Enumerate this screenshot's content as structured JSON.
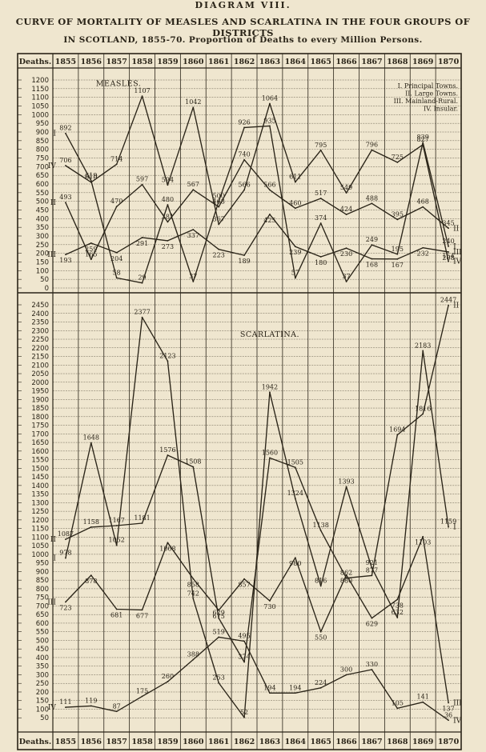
{
  "header": {
    "plate": "DIAGRAM VIII.",
    "title_line1": "CURVE OF MORTALITY OF MEASLES AND SCARLATINA IN THE FOUR GROUPS OF DISTRICTS",
    "title_line2": "IN SCOTLAND, 1855-70.  Proportion of Deaths to every Million Persons."
  },
  "colors": {
    "paper": "#efe6cf",
    "ink": "#2a2418",
    "grid": "#6b6352"
  },
  "chart_data": [
    {
      "type": "line",
      "title": "MEASLES.",
      "column_label": "Deaths.",
      "x": [
        1855,
        1856,
        1857,
        1858,
        1859,
        1860,
        1861,
        1862,
        1863,
        1864,
        1865,
        1866,
        1867,
        1868,
        1869,
        1870
      ],
      "ylim": [
        0,
        1200
      ],
      "yticks": [
        0,
        50,
        100,
        150,
        200,
        250,
        300,
        350,
        400,
        450,
        500,
        550,
        600,
        650,
        700,
        750,
        800,
        850,
        900,
        950,
        1000,
        1050,
        1100,
        1150,
        1200
      ],
      "legend": [
        "I. Principal Towns.",
        "II. Large Towns.",
        "III. Mainland-Rural.",
        "IV. Insular."
      ],
      "legend_position": "top-right",
      "series": [
        {
          "name": "I",
          "values": [
            892,
            619,
            58,
            29,
            480,
            37,
            500,
            926,
            935,
            57,
            374,
            37,
            249,
            195,
            839,
            240
          ]
        },
        {
          "name": "II",
          "values": [
            493,
            165,
            470,
            597,
            381,
            567,
            468,
            740,
            566,
            460,
            517,
            424,
            488,
            395,
            468,
            345
          ]
        },
        {
          "name": "III",
          "values": [
            193,
            259,
            204,
            291,
            273,
            337,
            223,
            189,
            425,
            239,
            180,
            230,
            168,
            167,
            232,
            208
          ]
        },
        {
          "name": "IV",
          "values": [
            706,
            610,
            714,
            1107,
            594,
            1042,
            367,
            566,
            1064,
            611,
            795,
            549,
            796,
            725,
            827,
            154
          ]
        }
      ],
      "point_labels": [
        "892",
        "619",
        "58",
        "29",
        "480",
        "37",
        "500",
        "926",
        "935",
        "57",
        "374",
        "37",
        "249",
        "195",
        "839",
        "240",
        "493",
        "165",
        "470",
        "597",
        "381",
        "567",
        "468",
        "740",
        "566",
        "460",
        "517",
        "424",
        "488",
        "395",
        "468",
        "345",
        "193",
        "259",
        "204",
        "291",
        "273",
        "337",
        "223",
        "189",
        "425",
        "239",
        "180",
        "230",
        "168",
        "167",
        "232",
        "208",
        "706",
        "610",
        "714",
        "1107",
        "594",
        "1042",
        "367",
        "566",
        "1064",
        "611",
        "795",
        "549",
        "796",
        "725",
        "827",
        "154"
      ]
    },
    {
      "type": "line",
      "title": "SCARLATINA.",
      "column_label": "Deaths.",
      "x": [
        1855,
        1856,
        1857,
        1858,
        1859,
        1860,
        1861,
        1862,
        1863,
        1864,
        1865,
        1866,
        1867,
        1868,
        1869,
        1870
      ],
      "ylim": [
        0,
        2450
      ],
      "yticks": [
        50,
        100,
        150,
        200,
        250,
        300,
        350,
        400,
        450,
        500,
        550,
        600,
        650,
        700,
        750,
        800,
        850,
        900,
        950,
        1000,
        1050,
        1100,
        1150,
        1200,
        1250,
        1300,
        1350,
        1400,
        1450,
        1500,
        1550,
        1600,
        1650,
        1700,
        1750,
        1800,
        1850,
        1900,
        1950,
        2000,
        2050,
        2100,
        2150,
        2200,
        2250,
        2300,
        2350,
        2400,
        2450
      ],
      "series": [
        {
          "name": "I",
          "values": [
            978,
            1648,
            1052,
            2377,
            2123,
            742,
            253,
            52,
            1942,
            1324,
            816,
            1393,
            921,
            632,
            2183,
            1159
          ]
        },
        {
          "name": "II",
          "values": [
            1087,
            1158,
            1167,
            1181,
            1576,
            1508,
            629,
            374,
            1560,
            1505,
            1138,
            862,
            877,
            1694,
            1816,
            2447
          ]
        },
        {
          "name": "III",
          "values": [
            723,
            878,
            681,
            677,
            1068,
            858,
            675,
            857,
            730,
            980,
            550,
            880,
            629,
            738,
            1103,
            137
          ]
        },
        {
          "name": "IV",
          "values": [
            111,
            119,
            87,
            175,
            260,
            388,
            519,
            495,
            194,
            194,
            224,
            300,
            330,
            105,
            141,
            36
          ]
        }
      ],
      "point_labels": [
        "978",
        "1648",
        "1052",
        "2377",
        "2123",
        "742",
        "253",
        "52",
        "1942",
        "1324",
        "816",
        "1393",
        "921",
        "632",
        "2183",
        "1159",
        "1087",
        "1158",
        "1167",
        "1181",
        "1576",
        "1508",
        "629",
        "374",
        "1560",
        "1505",
        "1138",
        "862",
        "877",
        "1694",
        "1816",
        "2447",
        "723",
        "878",
        "681",
        "677",
        "1068",
        "858",
        "675",
        "857",
        "730",
        "980",
        "550",
        "880",
        "629",
        "738",
        "1103",
        "137",
        "111",
        "119",
        "87",
        "175",
        "260",
        "388",
        "519",
        "495",
        "194",
        "194",
        "224",
        "300",
        "330",
        "105",
        "141",
        "36"
      ]
    }
  ]
}
